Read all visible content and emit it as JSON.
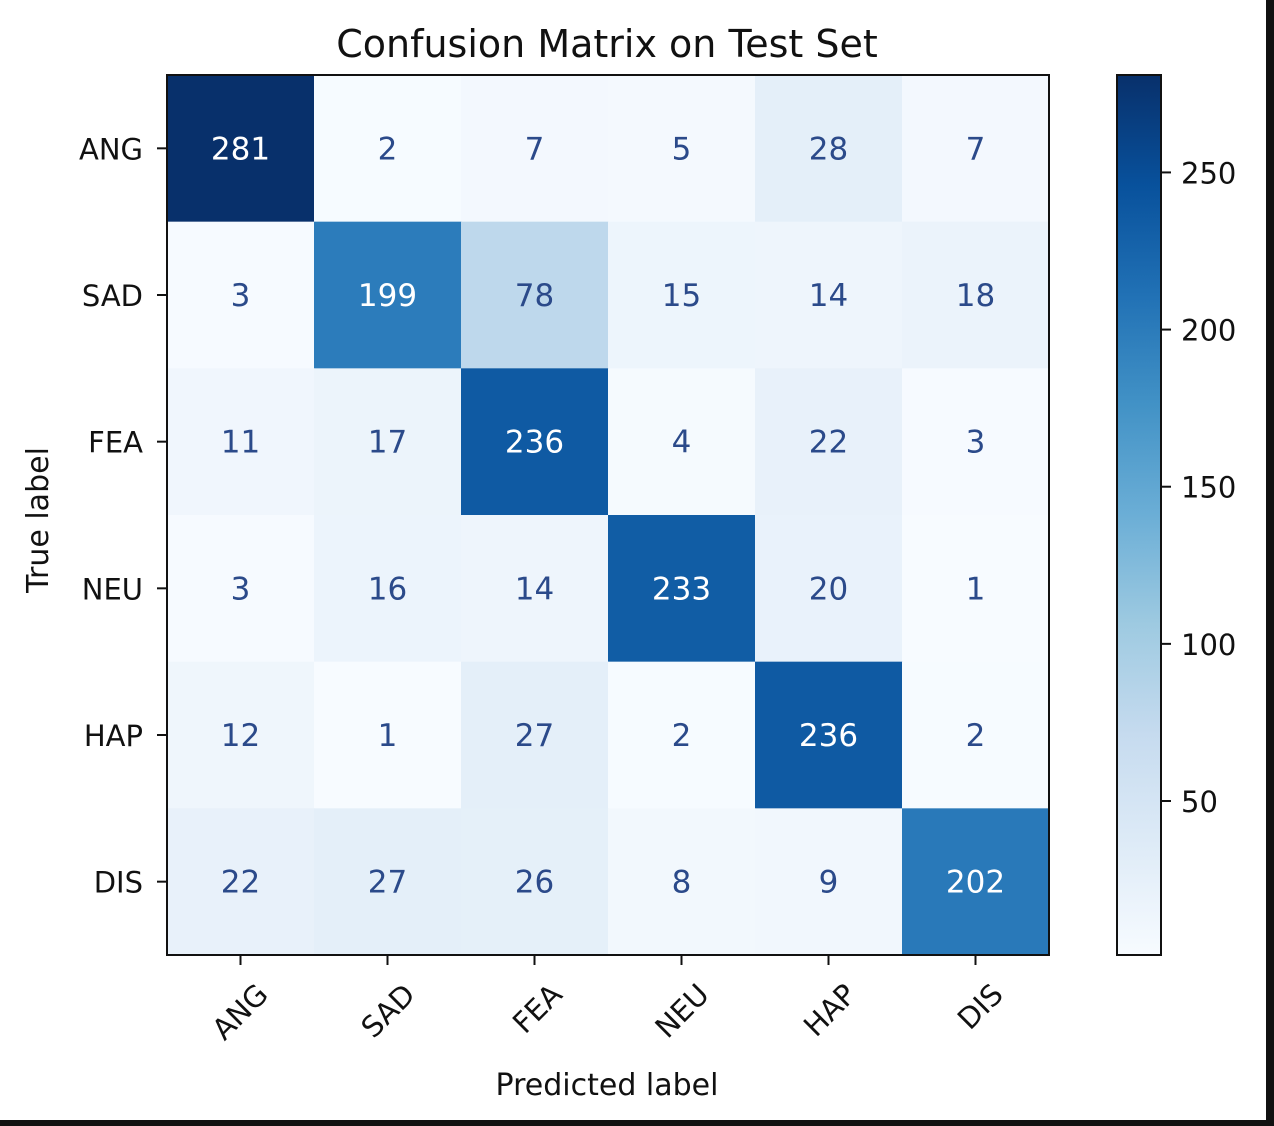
{
  "chart_data": {
    "type": "heatmap",
    "title": "Confusion Matrix on Test Set",
    "xlabel": "Predicted label",
    "ylabel": "True label",
    "x_categories": [
      "ANG",
      "SAD",
      "FEA",
      "NEU",
      "HAP",
      "DIS"
    ],
    "y_categories": [
      "ANG",
      "SAD",
      "FEA",
      "NEU",
      "HAP",
      "DIS"
    ],
    "values": [
      [
        281,
        2,
        7,
        5,
        28,
        7
      ],
      [
        3,
        199,
        78,
        15,
        14,
        18
      ],
      [
        11,
        17,
        236,
        4,
        22,
        3
      ],
      [
        3,
        16,
        14,
        233,
        20,
        1
      ],
      [
        12,
        1,
        27,
        2,
        236,
        2
      ],
      [
        22,
        27,
        26,
        8,
        9,
        202
      ]
    ],
    "colormap": "Blues",
    "colorbar": {
      "range": [
        1,
        281
      ],
      "ticks": [
        50,
        100,
        150,
        200,
        250
      ]
    },
    "colors": {
      "low": "#f7fbff",
      "high": "#08306b",
      "text_dark": "#2b4a8a",
      "text_light": "#ffffff"
    }
  }
}
